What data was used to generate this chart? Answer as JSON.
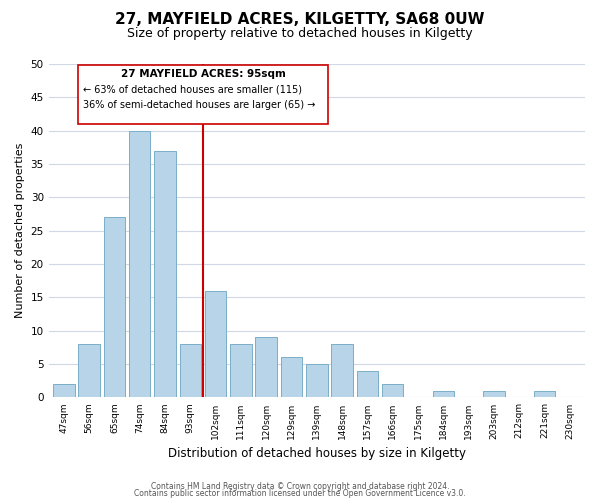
{
  "title": "27, MAYFIELD ACRES, KILGETTY, SA68 0UW",
  "subtitle": "Size of property relative to detached houses in Kilgetty",
  "xlabel": "Distribution of detached houses by size in Kilgetty",
  "ylabel": "Number of detached properties",
  "footer_line1": "Contains HM Land Registry data © Crown copyright and database right 2024.",
  "footer_line2": "Contains public sector information licensed under the Open Government Licence v3.0.",
  "bin_labels": [
    "47sqm",
    "56sqm",
    "65sqm",
    "74sqm",
    "84sqm",
    "93sqm",
    "102sqm",
    "111sqm",
    "120sqm",
    "129sqm",
    "139sqm",
    "148sqm",
    "157sqm",
    "166sqm",
    "175sqm",
    "184sqm",
    "193sqm",
    "203sqm",
    "212sqm",
    "221sqm",
    "230sqm"
  ],
  "values": [
    2,
    8,
    27,
    40,
    37,
    8,
    16,
    8,
    9,
    6,
    5,
    8,
    4,
    2,
    0,
    1,
    0,
    1,
    0,
    1,
    0
  ],
  "highlight_index": 5,
  "bar_color_normal": "#b8d4e8",
  "bar_edge_color": "#7aaec8",
  "highlight_line_color": "#cc0000",
  "annotation_box_edge": "#cc0000",
  "annotation_text_line1": "27 MAYFIELD ACRES: 95sqm",
  "annotation_text_line2": "← 63% of detached houses are smaller (115)",
  "annotation_text_line3": "36% of semi-detached houses are larger (65) →",
  "ylim": [
    0,
    50
  ],
  "background_color": "#ffffff",
  "grid_color": "#d0d8e8"
}
